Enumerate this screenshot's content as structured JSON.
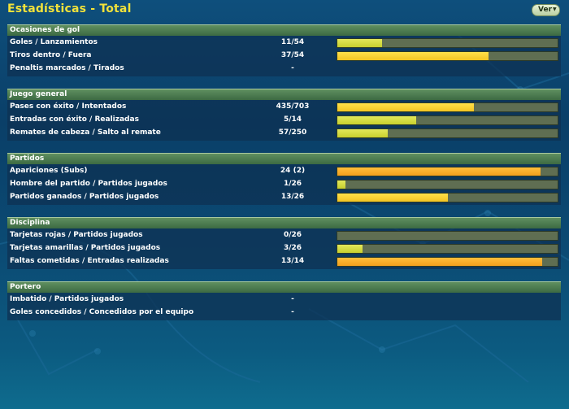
{
  "title": "Estadísticas - Total",
  "view_button": {
    "label": "Ver",
    "icon": "chevron-down-icon"
  },
  "colors": {
    "title": "#f2e23a",
    "header": "#4a7a50",
    "lime": "#d3da3c",
    "yellow": "#f7d236",
    "orange": "#f5a928",
    "bar_bg": "#5f6e52"
  },
  "sections": [
    {
      "header": "Ocasiones de gol",
      "rows": [
        {
          "label": "Goles / Lanzamientos",
          "value": "11/54",
          "bar": true,
          "fill": 0.2037,
          "color": "lime"
        },
        {
          "label": "Tiros dentro / Fuera",
          "value": "37/54",
          "bar": true,
          "fill": 0.6852,
          "color": "yellow"
        },
        {
          "label": "Penaltis marcados / Tirados",
          "value": "-",
          "bar": false
        }
      ]
    },
    {
      "header": "Juego general",
      "rows": [
        {
          "label": "Pases con éxito / Intentados",
          "value": "435/703",
          "bar": true,
          "fill": 0.6188,
          "color": "yellow"
        },
        {
          "label": "Entradas con éxito / Realizadas",
          "value": "5/14",
          "bar": true,
          "fill": 0.3571,
          "color": "lime"
        },
        {
          "label": "Remates de cabeza / Salto al remate",
          "value": "57/250",
          "bar": true,
          "fill": 0.228,
          "color": "lime"
        }
      ]
    },
    {
      "header": "Partidos",
      "rows": [
        {
          "label": "Apariciones (Subs)",
          "value": "24 (2)",
          "bar": true,
          "fill": 0.923,
          "color": "orange"
        },
        {
          "label": "Hombre del partido / Partidos jugados",
          "value": "1/26",
          "bar": true,
          "fill": 0.0385,
          "color": "lime"
        },
        {
          "label": "Partidos ganados / Partidos jugados",
          "value": "13/26",
          "bar": true,
          "fill": 0.5,
          "color": "yellow"
        }
      ]
    },
    {
      "header": "Disciplina",
      "rows": [
        {
          "label": "Tarjetas rojas / Partidos jugados",
          "value": "0/26",
          "bar": true,
          "fill": 0,
          "color": "lime"
        },
        {
          "label": "Tarjetas amarillas / Partidos jugados",
          "value": "3/26",
          "bar": true,
          "fill": 0.1154,
          "color": "lime"
        },
        {
          "label": "Faltas cometidas / Entradas realizadas",
          "value": "13/14",
          "bar": true,
          "fill": 0.93,
          "color": "orange"
        }
      ]
    },
    {
      "header": "Portero",
      "rows": [
        {
          "label": "Imbatido / Partidos jugados",
          "value": "-",
          "bar": false
        },
        {
          "label": "Goles concedidos / Concedidos por el equipo",
          "value": "-",
          "bar": false
        }
      ]
    }
  ]
}
